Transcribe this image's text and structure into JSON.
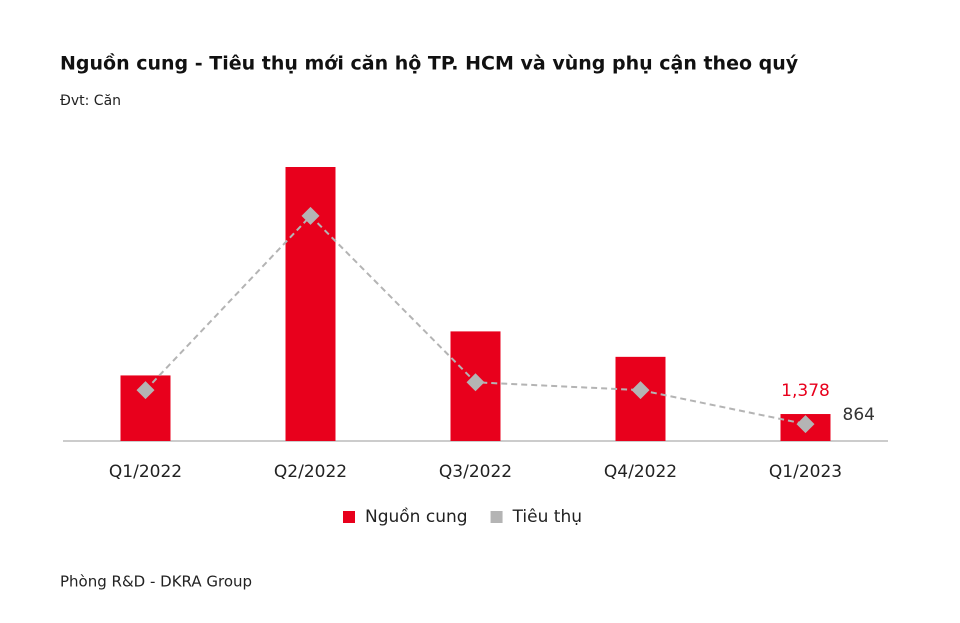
{
  "chart_data": {
    "type": "bar_line",
    "title": "Nguồn cung - Tiêu thụ mới căn hộ TP. HCM và vùng phụ cận theo quý",
    "subtitle": "Đvt: Căn",
    "source": "Phòng R&D - DKRA Group",
    "categories": [
      "Q1/2022",
      "Q2/2022",
      "Q3/2022",
      "Q4/2022",
      "Q1/2023"
    ],
    "series": [
      {
        "name": "Nguồn cung",
        "type": "bar",
        "color": "#e8001c",
        "values": [
          3350,
          14000,
          5600,
          4300,
          1378
        ],
        "value_labels": [
          null,
          null,
          null,
          null,
          "1,378"
        ]
      },
      {
        "name": "Tiêu thụ",
        "type": "line",
        "color": "#b4b4b4",
        "values": [
          2600,
          11500,
          3000,
          2600,
          864
        ],
        "value_labels": [
          null,
          null,
          null,
          null,
          "864"
        ]
      }
    ],
    "legend": "bottom"
  }
}
